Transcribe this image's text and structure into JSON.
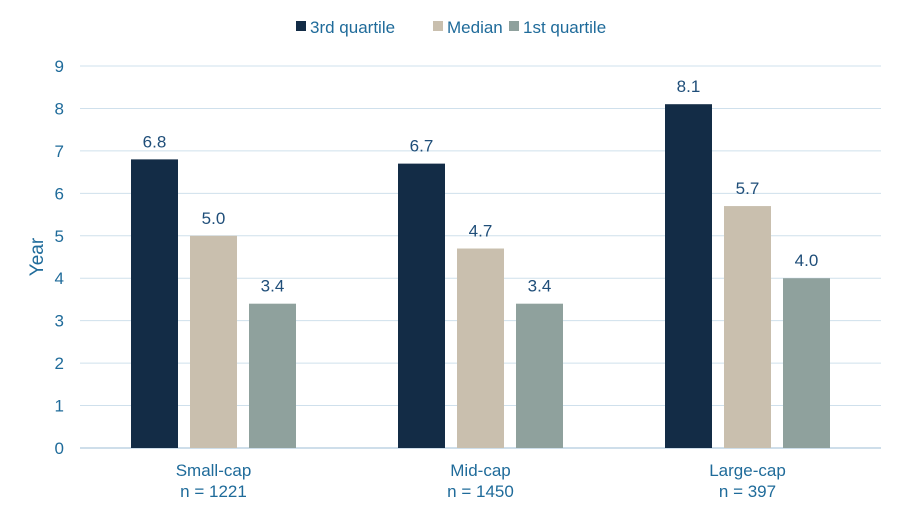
{
  "chart_data": {
    "type": "bar",
    "categories": [
      "Small-cap",
      "Mid-cap",
      "Large-cap"
    ],
    "category_sublabels": [
      "n = 1221",
      "n = 1450",
      "n = 397"
    ],
    "series": [
      {
        "name": "3rd quartile",
        "values": [
          6.8,
          6.7,
          8.1
        ],
        "labels": [
          "6.8",
          "6.7",
          "8.1"
        ],
        "color": "#132c46"
      },
      {
        "name": "Median",
        "values": [
          5.0,
          4.7,
          5.7
        ],
        "labels": [
          "5.0",
          "4.7",
          "5.7"
        ],
        "color": "#c9bfae"
      },
      {
        "name": "1st quartile",
        "values": [
          3.4,
          3.4,
          4.0
        ],
        "labels": [
          "3.4",
          "3.4",
          "4.0"
        ],
        "color": "#8fa19d"
      }
    ],
    "ylabel": "Year",
    "ylim": [
      0,
      9
    ],
    "yticks": [
      "0",
      "1",
      "2",
      "3",
      "4",
      "5",
      "6",
      "7",
      "8",
      "9"
    ],
    "grid": true,
    "legend_position": "top"
  }
}
